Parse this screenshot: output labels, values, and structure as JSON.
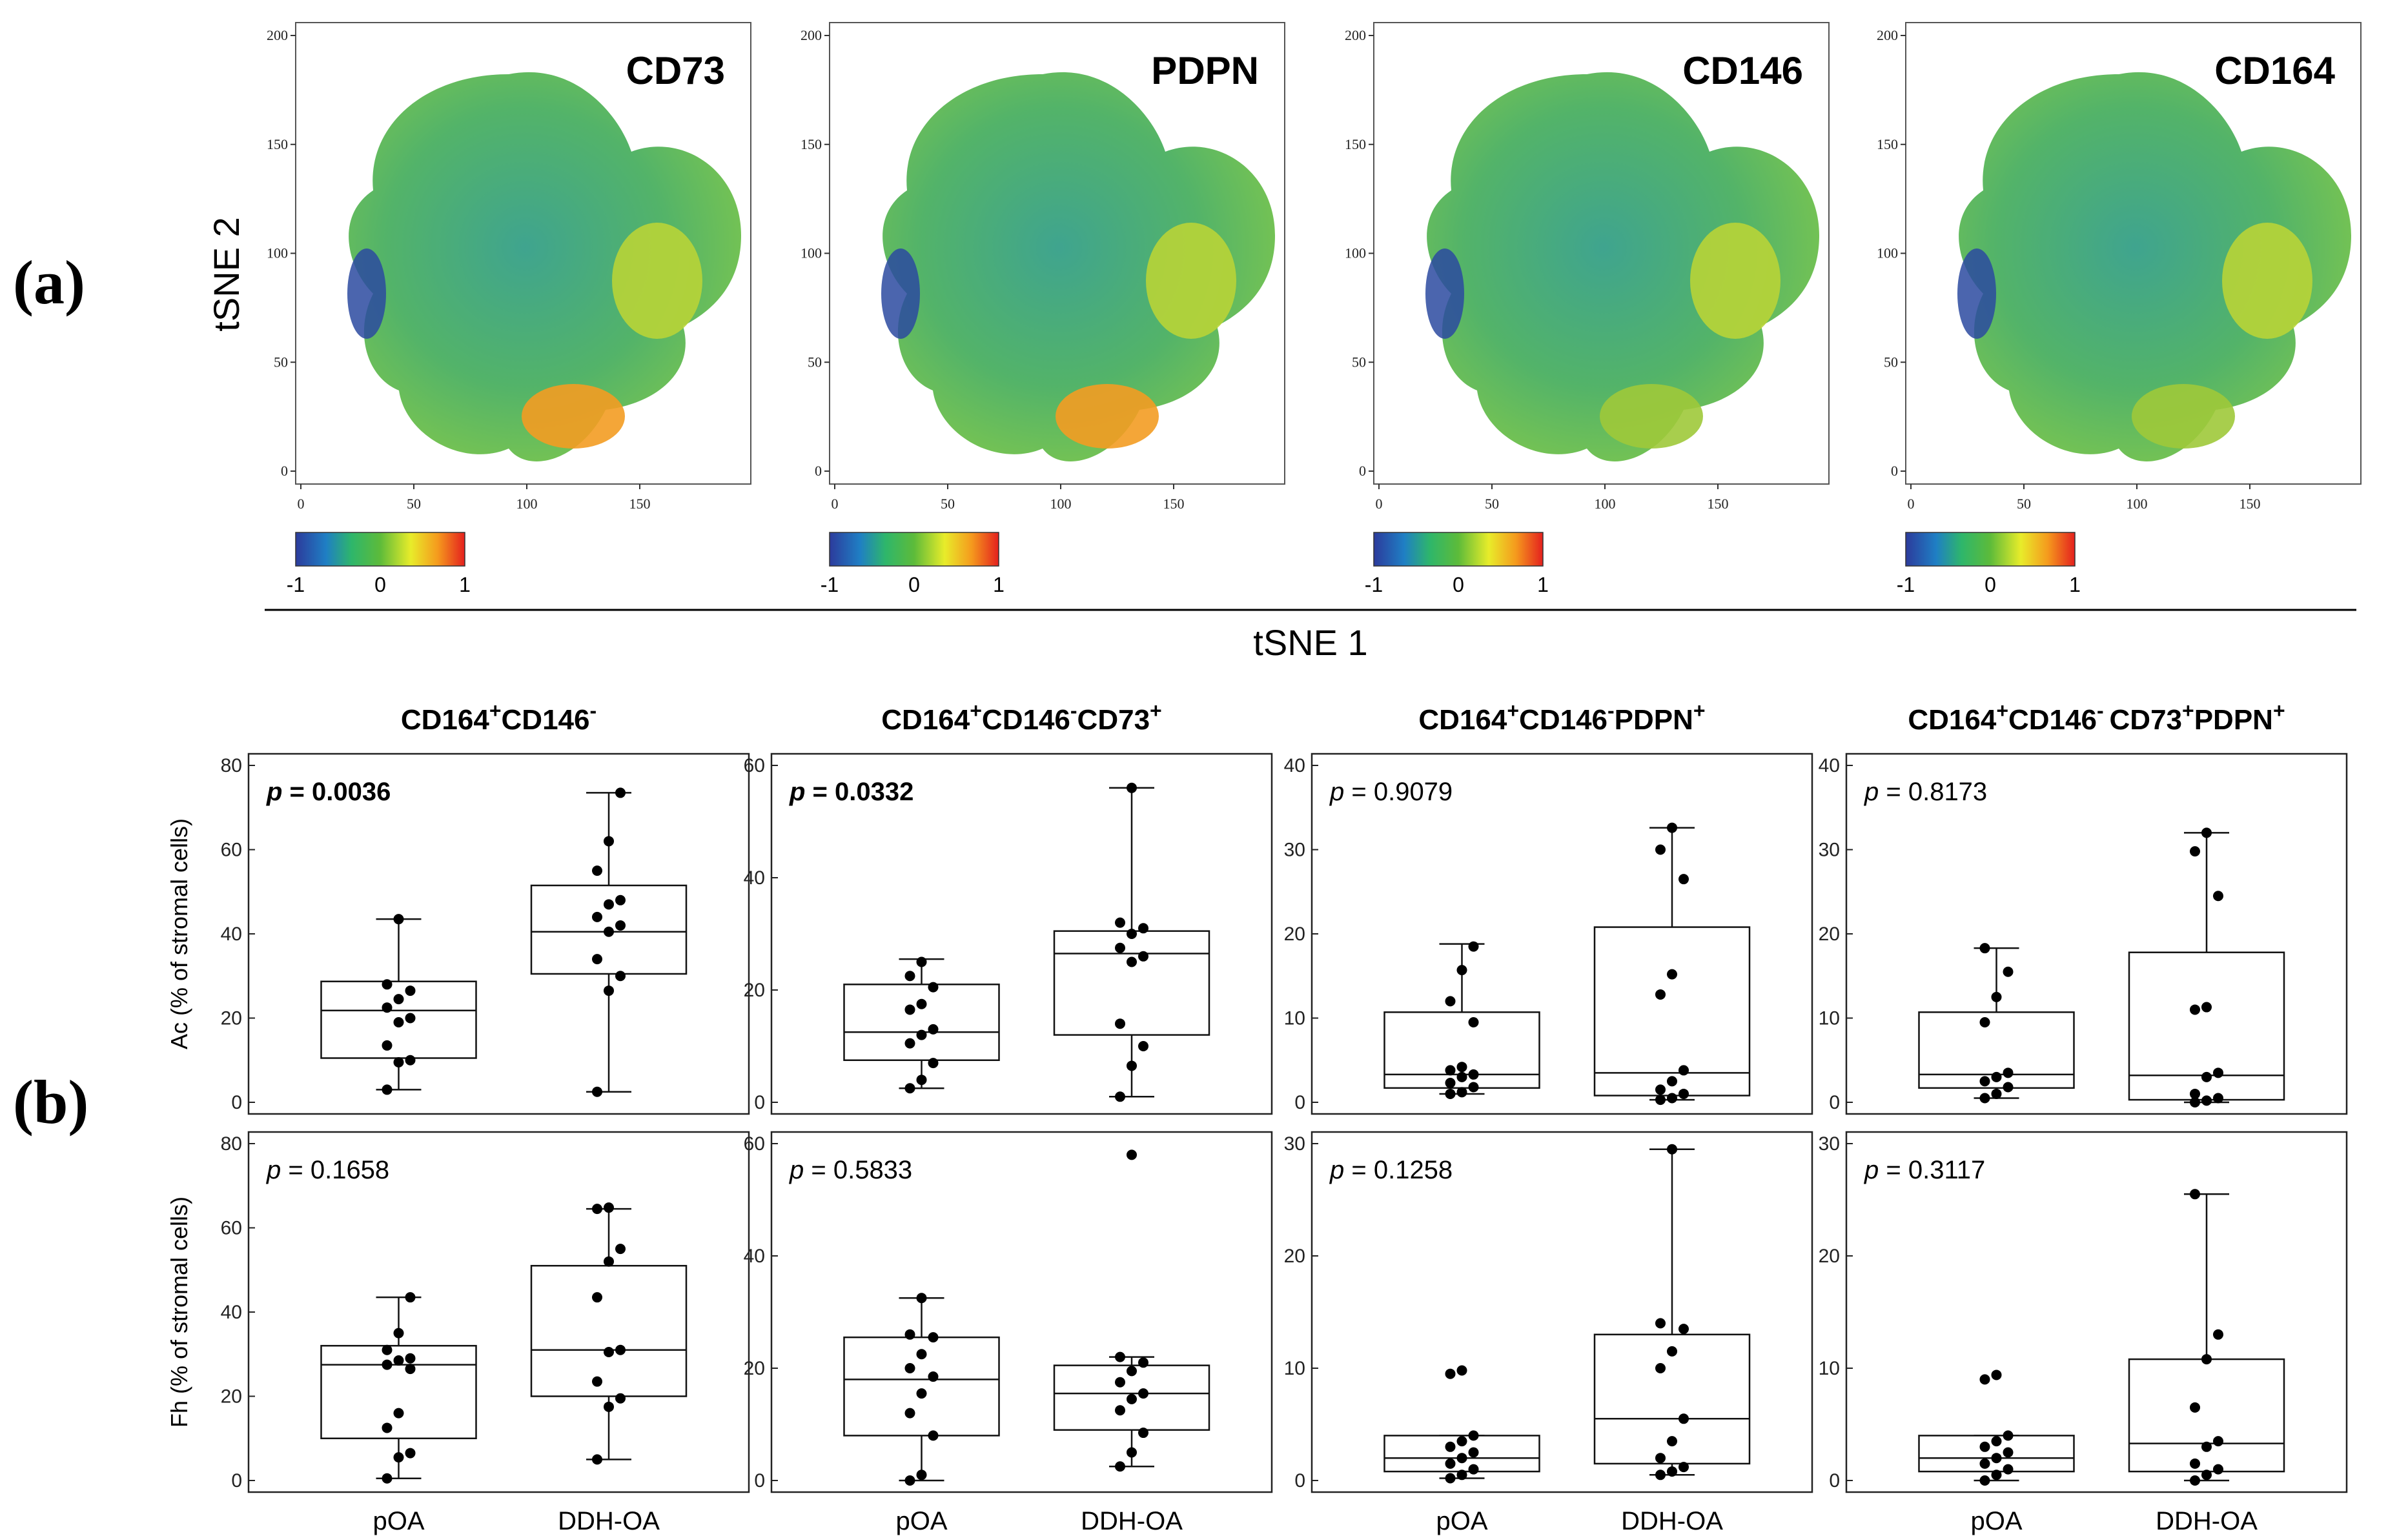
{
  "panels": {
    "a_label": "(a)",
    "b_label": "(b)"
  },
  "tsne": {
    "xlabel": "tSNE 1",
    "ylabel": "tSNE 2",
    "x_ticks": [
      "0",
      "50",
      "100",
      "150"
    ],
    "y_ticks": [
      "0",
      "50",
      "100",
      "150",
      "200"
    ],
    "colorbar_ticks": [
      "-1",
      "0",
      "1"
    ],
    "maps": [
      {
        "marker": "CD73"
      },
      {
        "marker": "PDPN"
      },
      {
        "marker": "CD146"
      },
      {
        "marker": "CD164"
      }
    ]
  },
  "chart_data": [
    {
      "type": "box",
      "row": "Ac",
      "title_parts": [
        "CD164",
        "+",
        "CD146",
        "-"
      ],
      "title": "CD164+CD146-",
      "ylabel": "Ac (% of  stromal cells)",
      "ylim": [
        0,
        80
      ],
      "yticks": [
        "0",
        "20",
        "40",
        "60",
        "80"
      ],
      "p_label": "p",
      "p_text": "= 0.0036",
      "p_bold": true,
      "categories": [
        "pOA",
        "DDH-OA"
      ],
      "boxes": [
        {
          "q1": 10.5,
          "median": 21.8,
          "q3": 28.7,
          "whisker_low": 3.0,
          "whisker_high": 43.5,
          "points": [
            3.0,
            9.5,
            10.0,
            13.5,
            19.0,
            20.0,
            22.5,
            24.5,
            26.5,
            28.0,
            43.5
          ]
        },
        {
          "q1": 30.5,
          "median": 40.5,
          "q3": 51.5,
          "whisker_low": 2.5,
          "whisker_high": 73.5,
          "points": [
            2.5,
            26.5,
            30.0,
            34.0,
            40.5,
            42.0,
            44.0,
            47.0,
            48.0,
            55.0,
            62.0,
            73.5
          ]
        }
      ]
    },
    {
      "type": "box",
      "row": "Ac",
      "title_parts": [
        "CD164",
        "+",
        "CD146",
        "-",
        "CD73",
        "+"
      ],
      "title": "CD164+CD146-CD73+",
      "ylabel": "",
      "ylim": [
        0,
        60
      ],
      "yticks": [
        "0",
        "20",
        "40",
        "60"
      ],
      "p_label": "p",
      "p_text": "= 0.0332",
      "p_bold": true,
      "categories": [
        "pOA",
        "DDH-OA"
      ],
      "boxes": [
        {
          "q1": 7.5,
          "median": 12.5,
          "q3": 21.0,
          "whisker_low": 2.5,
          "whisker_high": 25.5,
          "points": [
            2.5,
            4.0,
            7.0,
            10.5,
            12.0,
            13.0,
            16.5,
            17.5,
            20.5,
            22.5,
            25.0
          ]
        },
        {
          "q1": 12.0,
          "median": 26.5,
          "q3": 30.5,
          "whisker_low": 1.0,
          "whisker_high": 56.0,
          "points": [
            1.0,
            6.5,
            10.0,
            14.0,
            25.0,
            26.0,
            27.5,
            30.0,
            31.0,
            32.0,
            56.0
          ]
        }
      ]
    },
    {
      "type": "box",
      "row": "Ac",
      "title_parts": [
        "CD164",
        "+",
        "CD146",
        "-",
        "PDPN",
        "+"
      ],
      "title": "CD164+CD146-PDPN+",
      "ylabel": "",
      "ylim": [
        0,
        40
      ],
      "yticks": [
        "0",
        "10",
        "20",
        "30",
        "40"
      ],
      "p_label": "p",
      "p_text": "= 0.9079",
      "p_bold": false,
      "categories": [
        "pOA",
        "DDH-OA"
      ],
      "boxes": [
        {
          "q1": 1.7,
          "median": 3.3,
          "q3": 10.7,
          "whisker_low": 1.0,
          "whisker_high": 18.8,
          "points": [
            1.0,
            1.2,
            1.8,
            2.3,
            3.0,
            3.3,
            3.8,
            4.2,
            9.5,
            12.0,
            15.7,
            18.5
          ]
        },
        {
          "q1": 0.8,
          "median": 3.5,
          "q3": 20.8,
          "whisker_low": 0.3,
          "whisker_high": 32.6,
          "points": [
            0.3,
            0.5,
            1.0,
            1.5,
            2.5,
            3.8,
            12.8,
            15.2,
            26.5,
            30.0,
            32.6
          ]
        }
      ]
    },
    {
      "type": "box",
      "row": "Ac",
      "title_parts": [
        "CD164",
        "+",
        "CD146",
        "- ",
        "CD73",
        "+",
        "PDPN",
        "+"
      ],
      "title": "CD164+CD146- CD73+PDPN+",
      "ylabel": "",
      "ylim": [
        0,
        40
      ],
      "yticks": [
        "0",
        "10",
        "20",
        "30",
        "40"
      ],
      "p_label": "p",
      "p_text": "= 0.8173",
      "p_bold": false,
      "categories": [
        "pOA",
        "DDH-OA"
      ],
      "boxes": [
        {
          "q1": 1.7,
          "median": 3.3,
          "q3": 10.7,
          "whisker_low": 0.5,
          "whisker_high": 18.3,
          "points": [
            0.5,
            1.0,
            1.8,
            2.5,
            3.0,
            3.5,
            9.5,
            12.5,
            15.5,
            18.3
          ]
        },
        {
          "q1": 0.3,
          "median": 3.2,
          "q3": 17.8,
          "whisker_low": 0.0,
          "whisker_high": 32.0,
          "points": [
            0.0,
            0.2,
            0.5,
            1.0,
            3.0,
            3.5,
            11.0,
            11.3,
            24.5,
            29.8,
            32.0
          ]
        }
      ]
    },
    {
      "type": "box",
      "row": "Fh",
      "title_parts": [],
      "title": "",
      "ylabel": "Fh (% of  stromal cells)",
      "ylim": [
        0,
        80
      ],
      "yticks": [
        "0",
        "20",
        "40",
        "60",
        "80"
      ],
      "p_label": "p",
      "p_text": "= 0.1658",
      "p_bold": false,
      "categories": [
        "pOA",
        "DDH-OA"
      ],
      "boxes": [
        {
          "q1": 10.0,
          "median": 27.5,
          "q3": 32.0,
          "whisker_low": 0.5,
          "whisker_high": 43.5,
          "points": [
            0.5,
            5.5,
            6.5,
            12.5,
            16.0,
            26.5,
            27.5,
            28.5,
            29.0,
            31.0,
            35.0,
            43.5
          ]
        },
        {
          "q1": 20.0,
          "median": 31.0,
          "q3": 51.0,
          "whisker_low": 5.0,
          "whisker_high": 64.5,
          "points": [
            5.0,
            17.5,
            19.5,
            23.5,
            30.5,
            31.0,
            43.5,
            52.0,
            55.0,
            64.5,
            64.8
          ]
        }
      ]
    },
    {
      "type": "box",
      "row": "Fh",
      "title_parts": [],
      "title": "",
      "ylabel": "",
      "ylim": [
        0,
        60
      ],
      "yticks": [
        "0",
        "20",
        "40",
        "60"
      ],
      "p_label": "p",
      "p_text": "= 0.5833",
      "p_bold": false,
      "categories": [
        "pOA",
        "DDH-OA"
      ],
      "boxes": [
        {
          "q1": 8.0,
          "median": 18.0,
          "q3": 25.5,
          "whisker_low": 0.0,
          "whisker_high": 32.5,
          "points": [
            0.0,
            1.0,
            8.0,
            12.0,
            15.5,
            18.5,
            20.0,
            22.5,
            25.5,
            26.0,
            32.5
          ]
        },
        {
          "q1": 9.0,
          "median": 15.5,
          "q3": 20.5,
          "whisker_low": 2.5,
          "whisker_high": 22.0,
          "points": [
            2.5,
            5.0,
            8.5,
            12.5,
            14.5,
            15.5,
            17.5,
            19.5,
            21.0,
            22.0,
            58.0
          ]
        }
      ]
    },
    {
      "type": "box",
      "row": "Fh",
      "title_parts": [],
      "title": "",
      "ylabel": "",
      "ylim": [
        0,
        30
      ],
      "yticks": [
        "0",
        "10",
        "20",
        "30"
      ],
      "p_label": "p",
      "p_text": "= 0.1258",
      "p_bold": false,
      "categories": [
        "pOA",
        "DDH-OA"
      ],
      "boxes": [
        {
          "q1": 0.8,
          "median": 2.0,
          "q3": 4.0,
          "whisker_low": 0.2,
          "whisker_high": 4.0,
          "points": [
            0.2,
            0.5,
            1.0,
            1.5,
            2.0,
            2.5,
            3.0,
            3.5,
            4.0,
            9.5,
            9.8
          ]
        },
        {
          "q1": 1.5,
          "median": 5.5,
          "q3": 13.0,
          "whisker_low": 0.5,
          "whisker_high": 29.5,
          "points": [
            0.5,
            0.8,
            1.2,
            2.0,
            3.5,
            5.5,
            10.0,
            11.5,
            13.5,
            14.0,
            29.5
          ]
        }
      ]
    },
    {
      "type": "box",
      "row": "Fh",
      "title_parts": [],
      "title": "",
      "ylabel": "",
      "ylim": [
        0,
        30
      ],
      "yticks": [
        "0",
        "10",
        "20",
        "30"
      ],
      "p_label": "p",
      "p_text": "= 0.3117",
      "p_bold": false,
      "categories": [
        "pOA",
        "DDH-OA"
      ],
      "boxes": [
        {
          "q1": 0.8,
          "median": 2.0,
          "q3": 4.0,
          "whisker_low": 0.0,
          "whisker_high": 4.0,
          "points": [
            0.0,
            0.5,
            1.0,
            1.5,
            2.0,
            2.5,
            3.0,
            3.5,
            4.0,
            9.0,
            9.4
          ]
        },
        {
          "q1": 0.8,
          "median": 3.3,
          "q3": 10.8,
          "whisker_low": 0.0,
          "whisker_high": 25.5,
          "points": [
            0.0,
            0.5,
            1.0,
            1.5,
            3.0,
            3.5,
            6.5,
            10.8,
            13.0,
            25.5
          ]
        }
      ]
    }
  ]
}
